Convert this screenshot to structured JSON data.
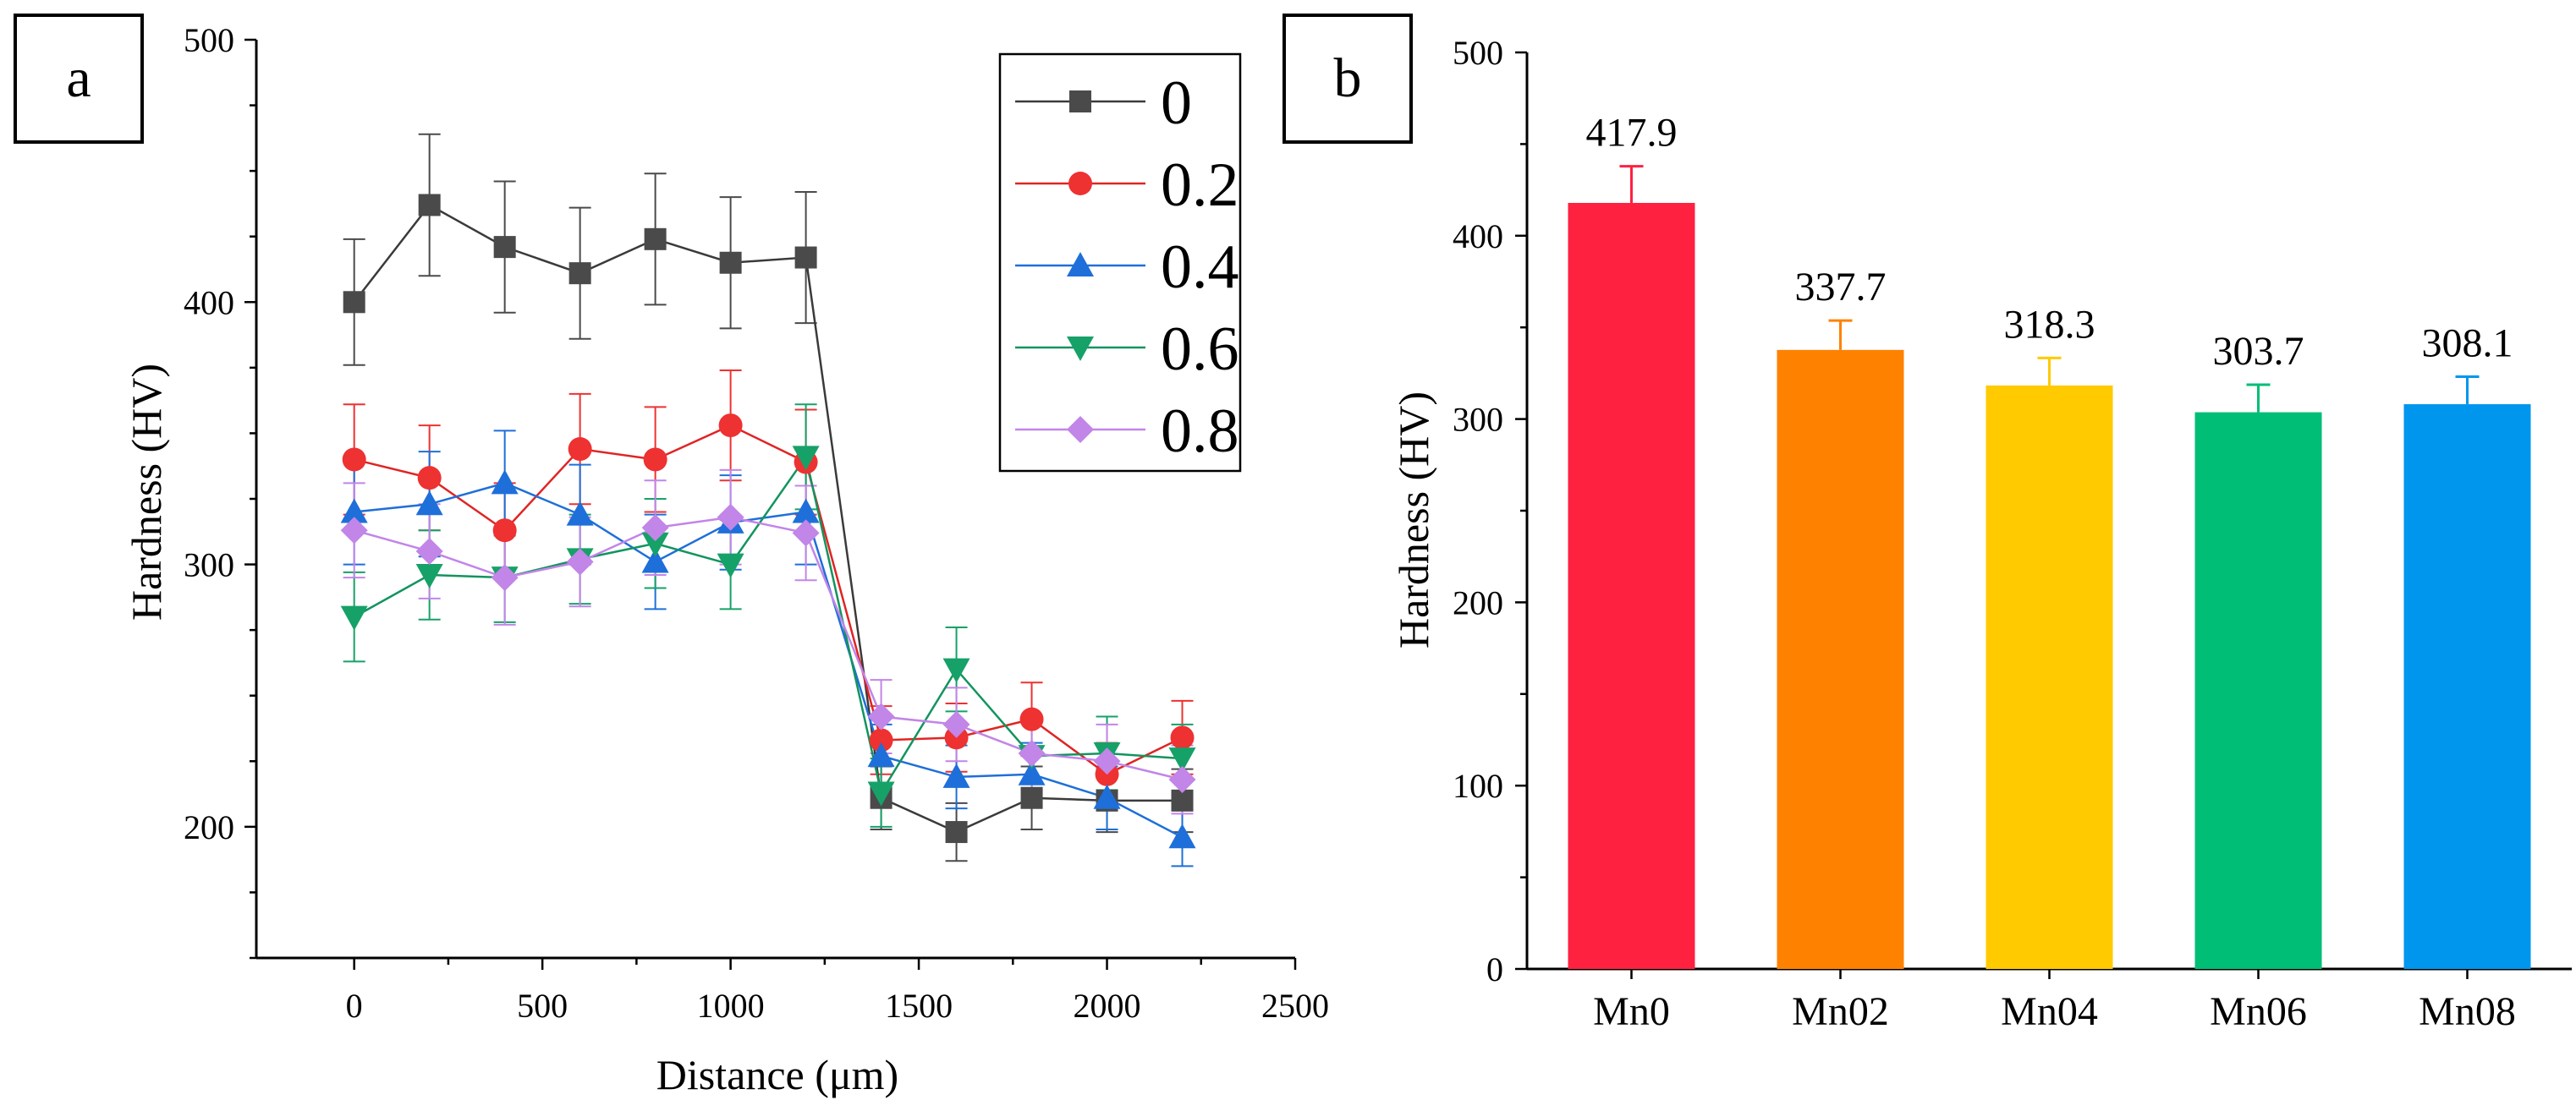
{
  "chart_data": [
    {
      "panel": "a",
      "type": "line",
      "xlabel": "Distance (μm)",
      "ylabel": "Hardness (HV)",
      "xlim": [
        -260,
        2500
      ],
      "ylim": [
        150,
        500
      ],
      "xticks": [
        0,
        500,
        1000,
        1500,
        2000,
        2500
      ],
      "yticks": [
        200,
        300,
        400,
        500
      ],
      "legend_position": "top-right",
      "x": [
        0,
        200,
        400,
        600,
        800,
        1000,
        1200,
        1400,
        1600,
        1800,
        2000,
        2200
      ],
      "series": [
        {
          "name": "0",
          "color": "#4a4a4a",
          "line_color": "#3a3a3a",
          "marker": "square",
          "values": [
            400,
            437,
            421,
            411,
            424,
            415,
            417,
            211,
            198,
            211,
            210,
            210
          ],
          "errors": [
            24,
            27,
            25,
            25,
            25,
            25,
            25,
            12,
            11,
            12,
            12,
            12
          ]
        },
        {
          "name": "0.2",
          "color": "#ee3131",
          "line_color": "#e02424",
          "marker": "circle",
          "values": [
            340,
            333,
            313,
            344,
            340,
            353,
            339,
            233,
            234,
            241,
            220,
            234
          ],
          "errors": [
            21,
            20,
            18,
            21,
            20,
            21,
            20,
            13,
            13,
            14,
            12,
            14
          ]
        },
        {
          "name": "0.4",
          "color": "#1e6fd9",
          "line_color": "#1e6fd9",
          "marker": "triangle-up",
          "values": [
            320,
            323,
            331,
            319,
            301,
            316,
            320,
            227,
            219,
            220,
            211,
            196
          ],
          "errors": [
            20,
            20,
            20,
            19,
            18,
            18,
            20,
            12,
            12,
            12,
            12,
            11
          ]
        },
        {
          "name": "0.6",
          "color": "#16a168",
          "line_color": "#12945f",
          "marker": "triangle-down",
          "values": [
            280,
            296,
            295,
            302,
            308,
            300,
            341,
            213,
            260,
            227,
            228,
            226
          ],
          "errors": [
            17,
            17,
            17,
            17,
            17,
            17,
            20,
            13,
            16,
            13,
            14,
            13
          ]
        },
        {
          "name": "0.8",
          "color": "#c285e8",
          "line_color": "#c285e8",
          "marker": "diamond",
          "values": [
            313,
            305,
            295,
            301,
            314,
            318,
            312,
            242,
            239,
            228,
            225,
            218
          ],
          "errors": [
            18,
            18,
            18,
            17,
            18,
            18,
            18,
            14,
            14,
            14,
            14,
            13
          ]
        }
      ]
    },
    {
      "panel": "b",
      "type": "bar",
      "ylabel": "Hardness (HV)",
      "xlabel": "",
      "ylim": [
        0,
        500
      ],
      "yticks": [
        0,
        100,
        200,
        300,
        400,
        500
      ],
      "categories": [
        "Mn0",
        "Mn02",
        "Mn04",
        "Mn06",
        "Mn08"
      ],
      "values": [
        417.9,
        337.7,
        318.3,
        303.7,
        308.1
      ],
      "errors": [
        20,
        16,
        15,
        15,
        15
      ],
      "value_labels": [
        "417.9",
        "337.7",
        "318.3",
        "303.7",
        "308.1"
      ],
      "colors": [
        "#fe2140",
        "#fe8200",
        "#ffca00",
        "#00be76",
        "#0096ee"
      ]
    }
  ]
}
